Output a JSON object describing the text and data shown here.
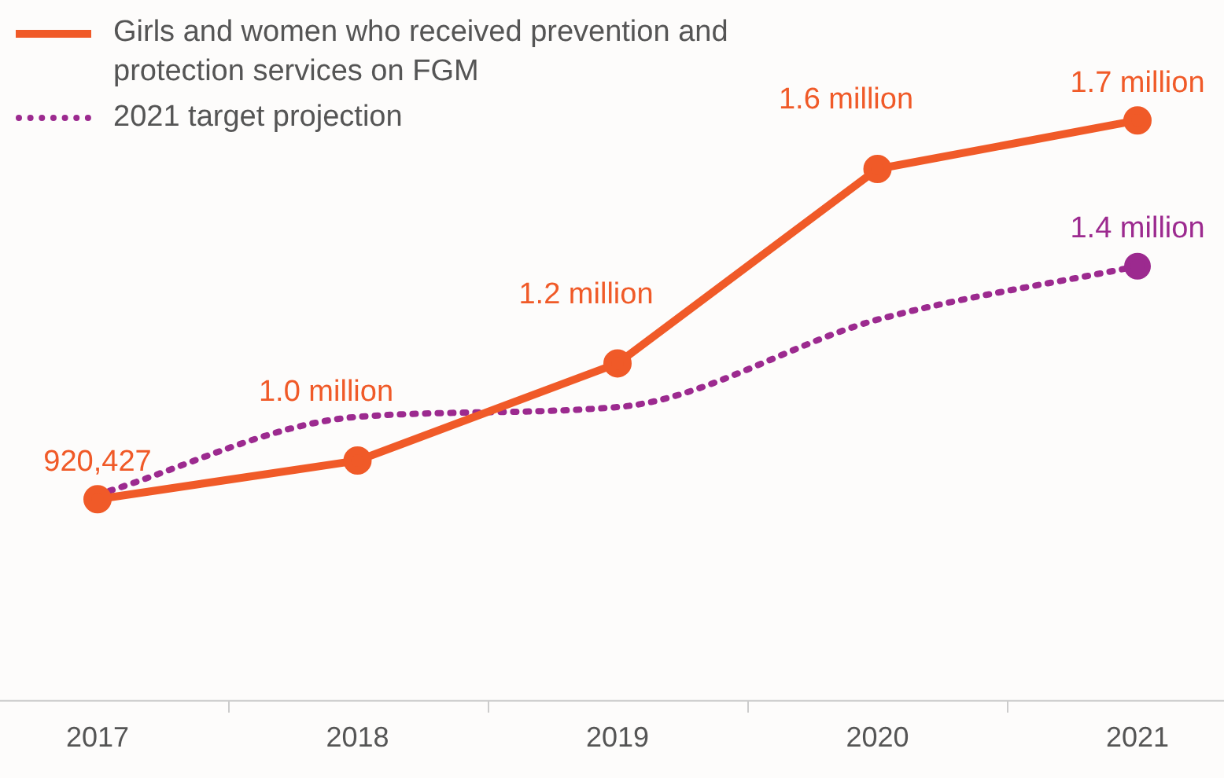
{
  "chart_data": {
    "type": "line",
    "categories": [
      "2017",
      "2018",
      "2019",
      "2020",
      "2021"
    ],
    "series": [
      {
        "name": "Girls and women who received prevention and protection services on FGM",
        "color": "#f05a28",
        "line_style": "solid",
        "marker": "circle",
        "values": [
          920427,
          1000000,
          1200000,
          1600000,
          1700000
        ],
        "value_labels": [
          "920,427",
          "1.0 million",
          "1.2 million",
          "1.6 million",
          "1.7 million"
        ]
      },
      {
        "name": "2021 target projection",
        "color": "#9c2a8f",
        "line_style": "dotted",
        "values": [
          930000,
          1090000,
          1110000,
          1290000,
          1400000
        ],
        "value_labels": [
          null,
          null,
          null,
          null,
          "1.4 million"
        ]
      }
    ],
    "grid": false,
    "legend": "top left"
  }
}
